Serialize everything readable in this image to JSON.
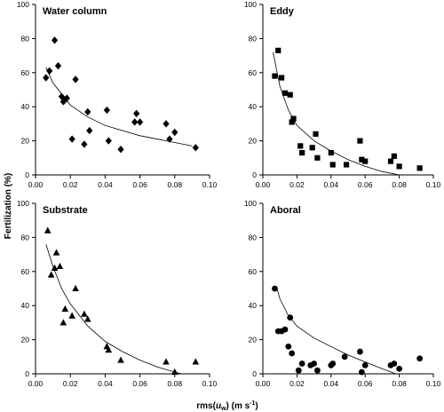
{
  "axis_titles": {
    "y": "Fertilization (%)",
    "x_prefix": "rms(",
    "x_var": "u",
    "x_sub": "w",
    "x_suffix": ") (m s",
    "x_exp": "-1",
    "x_close": ")"
  },
  "chart_data": [
    {
      "type": "scatter",
      "title": "Water column",
      "marker": "diamond",
      "xlim": [
        0,
        0.1
      ],
      "ylim": [
        0,
        100
      ],
      "x_ticks": [
        "0.00",
        "0.02",
        "0.04",
        "0.06",
        "0.08",
        "0.10"
      ],
      "y_ticks": [
        "0",
        "20",
        "40",
        "60",
        "80",
        "100"
      ],
      "fit_curve": {
        "x": [
          0.006,
          0.01,
          0.02,
          0.03,
          0.04,
          0.05,
          0.06,
          0.07,
          0.08,
          0.09
        ],
        "y": [
          63,
          54,
          41,
          34,
          29,
          26,
          23,
          21,
          19,
          17
        ]
      },
      "points": [
        {
          "x": 0.006,
          "y": 57
        },
        {
          "x": 0.008,
          "y": 61
        },
        {
          "x": 0.011,
          "y": 79
        },
        {
          "x": 0.013,
          "y": 64
        },
        {
          "x": 0.015,
          "y": 46
        },
        {
          "x": 0.016,
          "y": 43
        },
        {
          "x": 0.017,
          "y": 44
        },
        {
          "x": 0.018,
          "y": 45
        },
        {
          "x": 0.021,
          "y": 21
        },
        {
          "x": 0.023,
          "y": 56
        },
        {
          "x": 0.028,
          "y": 18
        },
        {
          "x": 0.03,
          "y": 37
        },
        {
          "x": 0.031,
          "y": 26
        },
        {
          "x": 0.041,
          "y": 38
        },
        {
          "x": 0.042,
          "y": 20
        },
        {
          "x": 0.049,
          "y": 15
        },
        {
          "x": 0.057,
          "y": 31
        },
        {
          "x": 0.058,
          "y": 36
        },
        {
          "x": 0.06,
          "y": 31
        },
        {
          "x": 0.075,
          "y": 30
        },
        {
          "x": 0.077,
          "y": 21
        },
        {
          "x": 0.08,
          "y": 25
        },
        {
          "x": 0.092,
          "y": 16
        }
      ]
    },
    {
      "type": "scatter",
      "title": "Eddy",
      "marker": "square",
      "xlim": [
        0,
        0.1
      ],
      "ylim": [
        0,
        100
      ],
      "x_ticks": [
        "0.00",
        "0.02",
        "0.04",
        "0.06",
        "0.08",
        "0.10"
      ],
      "y_ticks": [
        "0",
        "20",
        "40",
        "60",
        "80",
        "100"
      ],
      "fit_curve": {
        "x": [
          0.006,
          0.01,
          0.015,
          0.02,
          0.03,
          0.04,
          0.05,
          0.06,
          0.07,
          0.08
        ],
        "y": [
          72,
          52,
          38,
          29,
          20,
          14,
          9,
          5,
          2,
          0
        ]
      },
      "points": [
        {
          "x": 0.007,
          "y": 58
        },
        {
          "x": 0.009,
          "y": 73
        },
        {
          "x": 0.011,
          "y": 57
        },
        {
          "x": 0.013,
          "y": 48
        },
        {
          "x": 0.016,
          "y": 47
        },
        {
          "x": 0.017,
          "y": 31
        },
        {
          "x": 0.018,
          "y": 33
        },
        {
          "x": 0.022,
          "y": 17
        },
        {
          "x": 0.023,
          "y": 13
        },
        {
          "x": 0.029,
          "y": 16
        },
        {
          "x": 0.031,
          "y": 24
        },
        {
          "x": 0.032,
          "y": 10
        },
        {
          "x": 0.04,
          "y": 13
        },
        {
          "x": 0.041,
          "y": 6
        },
        {
          "x": 0.049,
          "y": 6
        },
        {
          "x": 0.057,
          "y": 20
        },
        {
          "x": 0.058,
          "y": 9
        },
        {
          "x": 0.06,
          "y": 8
        },
        {
          "x": 0.075,
          "y": 8
        },
        {
          "x": 0.077,
          "y": 11
        },
        {
          "x": 0.08,
          "y": 5
        },
        {
          "x": 0.092,
          "y": 4
        }
      ]
    },
    {
      "type": "scatter",
      "title": "Substrate",
      "marker": "triangle",
      "xlim": [
        0,
        0.1
      ],
      "ylim": [
        0,
        100
      ],
      "x_ticks": [
        "0.00",
        "0.02",
        "0.04",
        "0.06",
        "0.08",
        "0.10"
      ],
      "y_ticks": [
        "0",
        "20",
        "40",
        "60",
        "80",
        "100"
      ],
      "fit_curve": {
        "x": [
          0.006,
          0.01,
          0.015,
          0.02,
          0.03,
          0.04,
          0.05,
          0.06,
          0.07,
          0.08,
          0.084
        ],
        "y": [
          76,
          63,
          50,
          41,
          28,
          19,
          13,
          8,
          4,
          1,
          0
        ]
      },
      "points": [
        {
          "x": 0.007,
          "y": 84
        },
        {
          "x": 0.009,
          "y": 58
        },
        {
          "x": 0.011,
          "y": 62
        },
        {
          "x": 0.012,
          "y": 71
        },
        {
          "x": 0.014,
          "y": 63
        },
        {
          "x": 0.016,
          "y": 30
        },
        {
          "x": 0.017,
          "y": 38
        },
        {
          "x": 0.021,
          "y": 34
        },
        {
          "x": 0.023,
          "y": 50
        },
        {
          "x": 0.028,
          "y": 35
        },
        {
          "x": 0.03,
          "y": 32
        },
        {
          "x": 0.041,
          "y": 16
        },
        {
          "x": 0.042,
          "y": 14
        },
        {
          "x": 0.049,
          "y": 8
        },
        {
          "x": 0.075,
          "y": 7
        },
        {
          "x": 0.08,
          "y": 1
        },
        {
          "x": 0.092,
          "y": 7
        }
      ]
    },
    {
      "type": "scatter",
      "title": "Aboral",
      "marker": "circle",
      "xlim": [
        0,
        0.1
      ],
      "ylim": [
        0,
        100
      ],
      "x_ticks": [
        "0.00",
        "0.02",
        "0.04",
        "0.06",
        "0.08",
        "0.10"
      ],
      "y_ticks": [
        "0",
        "20",
        "40",
        "60",
        "80",
        "100"
      ],
      "fit_curve": {
        "x": [
          0.008,
          0.01,
          0.015,
          0.02,
          0.03,
          0.04,
          0.05,
          0.06,
          0.07,
          0.078
        ],
        "y": [
          51,
          44,
          34,
          28,
          21,
          16,
          11,
          7,
          3,
          0
        ]
      },
      "points": [
        {
          "x": 0.007,
          "y": 50
        },
        {
          "x": 0.009,
          "y": 25
        },
        {
          "x": 0.011,
          "y": 25
        },
        {
          "x": 0.013,
          "y": 26
        },
        {
          "x": 0.015,
          "y": 16
        },
        {
          "x": 0.016,
          "y": 33
        },
        {
          "x": 0.017,
          "y": 12
        },
        {
          "x": 0.021,
          "y": 2
        },
        {
          "x": 0.023,
          "y": 6
        },
        {
          "x": 0.028,
          "y": 5
        },
        {
          "x": 0.03,
          "y": 6
        },
        {
          "x": 0.032,
          "y": 2
        },
        {
          "x": 0.04,
          "y": 5
        },
        {
          "x": 0.041,
          "y": 6
        },
        {
          "x": 0.048,
          "y": 10
        },
        {
          "x": 0.057,
          "y": 13
        },
        {
          "x": 0.058,
          "y": 1
        },
        {
          "x": 0.06,
          "y": 5
        },
        {
          "x": 0.075,
          "y": 5
        },
        {
          "x": 0.077,
          "y": 6
        },
        {
          "x": 0.08,
          "y": 3
        },
        {
          "x": 0.092,
          "y": 9
        }
      ]
    }
  ]
}
